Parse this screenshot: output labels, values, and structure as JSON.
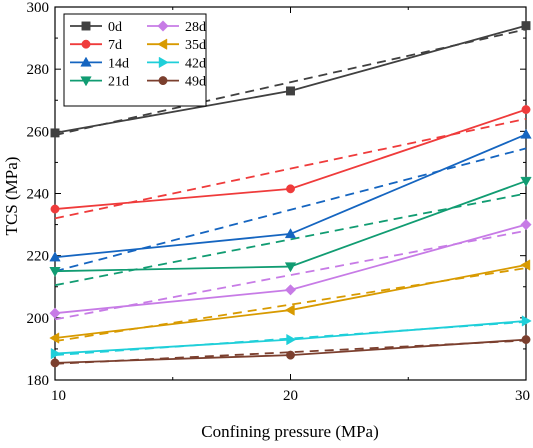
{
  "chart_data": {
    "type": "line",
    "xlabel": "Confining pressure (MPa)",
    "ylabel": "TCS (MPa)",
    "x": [
      10,
      20,
      30
    ],
    "xlim": [
      10,
      30
    ],
    "ylim": [
      180,
      300
    ],
    "xticks": [
      10,
      20,
      30
    ],
    "yticks": [
      180,
      200,
      220,
      240,
      260,
      280,
      300
    ],
    "grid": false,
    "legend_position": "top-left",
    "legend_columns": 2,
    "series": [
      {
        "name": "0d",
        "color": "#404040",
        "marker": "square",
        "values": [
          259.5,
          273,
          294
        ],
        "fit": [
          258.8,
          292.8
        ]
      },
      {
        "name": "7d",
        "color": "#ef3b3b",
        "marker": "circle",
        "values": [
          235,
          241.5,
          267
        ],
        "fit": [
          232,
          264
        ]
      },
      {
        "name": "14d",
        "color": "#1565c0",
        "marker": "triangle-up",
        "values": [
          219.5,
          227,
          259
        ],
        "fit": [
          215,
          254.5
        ]
      },
      {
        "name": "21d",
        "color": "#119c72",
        "marker": "triangle-down",
        "values": [
          215,
          216.5,
          244
        ],
        "fit": [
          210.5,
          240
        ]
      },
      {
        "name": "28d",
        "color": "#c77be6",
        "marker": "diamond",
        "values": [
          201.5,
          209,
          230
        ],
        "fit": [
          199.5,
          228
        ]
      },
      {
        "name": "35d",
        "color": "#d89a00",
        "marker": "triangle-left",
        "values": [
          193.5,
          202.5,
          217
        ],
        "fit": [
          192.5,
          216
        ]
      },
      {
        "name": "42d",
        "color": "#1fcfd9",
        "marker": "triangle-right",
        "values": [
          188.5,
          193,
          199
        ],
        "fit": [
          188,
          198.7
        ]
      },
      {
        "name": "49d",
        "color": "#7b3f2e",
        "marker": "hexagon",
        "values": [
          185.5,
          188,
          193
        ],
        "fit": [
          185.2,
          192.7
        ]
      }
    ]
  }
}
